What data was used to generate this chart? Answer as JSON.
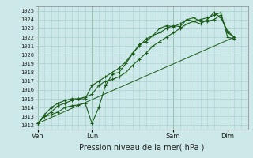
{
  "background_color": "#cce8e8",
  "grid_color": "#aacfcf",
  "line_color": "#1a5c1a",
  "title": "Pression niveau de la mer( hPa )",
  "ylabel_values": [
    1012,
    1013,
    1014,
    1015,
    1016,
    1017,
    1018,
    1019,
    1020,
    1021,
    1022,
    1023,
    1024,
    1025
  ],
  "ylim": [
    1011.5,
    1025.5
  ],
  "day_labels": [
    "Ven",
    "Lun",
    "Sam",
    "Dim"
  ],
  "day_positions": [
    0,
    48,
    120,
    168
  ],
  "xlim": [
    -2,
    186
  ],
  "series1_x": [
    0,
    6,
    12,
    18,
    24,
    30,
    36,
    42,
    48,
    54,
    60,
    66,
    72,
    78,
    84,
    90,
    96,
    102,
    108,
    114,
    120,
    126,
    132,
    138,
    144,
    150,
    156,
    162,
    168,
    174
  ],
  "series1_y": [
    1012.2,
    1013.0,
    1013.2,
    1013.5,
    1014.0,
    1014.2,
    1014.3,
    1014.5,
    1012.2,
    1014.0,
    1016.5,
    1017.8,
    1018.0,
    1019.0,
    1020.1,
    1021.2,
    1021.5,
    1022.2,
    1022.5,
    1023.0,
    1023.3,
    1023.2,
    1024.0,
    1023.8,
    1023.5,
    1024.0,
    1024.8,
    1024.2,
    1022.7,
    1022.0
  ],
  "series2_x": [
    0,
    6,
    12,
    18,
    24,
    30,
    36,
    42,
    48,
    54,
    60,
    66,
    72,
    78,
    84,
    90,
    96,
    102,
    108,
    114,
    120,
    126,
    132,
    138,
    144,
    150,
    156,
    162,
    168,
    174
  ],
  "series2_y": [
    1012.2,
    1013.2,
    1014.0,
    1014.5,
    1014.8,
    1015.0,
    1015.0,
    1015.0,
    1016.5,
    1017.0,
    1017.5,
    1018.0,
    1018.5,
    1019.2,
    1020.2,
    1021.0,
    1021.8,
    1022.2,
    1023.0,
    1023.3,
    1023.2,
    1023.5,
    1024.0,
    1024.2,
    1023.8,
    1023.8,
    1024.0,
    1024.5,
    1022.5,
    1022.0
  ],
  "series3_x": [
    0,
    6,
    12,
    18,
    24,
    30,
    36,
    42,
    48,
    54,
    60,
    66,
    72,
    78,
    84,
    90,
    96,
    102,
    108,
    114,
    120,
    126,
    132,
    138,
    144,
    150,
    156,
    162,
    168,
    174
  ],
  "series3_y": [
    1012.2,
    1013.0,
    1013.5,
    1014.2,
    1014.5,
    1014.8,
    1015.0,
    1015.2,
    1015.5,
    1016.5,
    1017.0,
    1017.2,
    1017.5,
    1018.0,
    1018.8,
    1019.5,
    1020.2,
    1021.0,
    1021.5,
    1022.0,
    1022.5,
    1023.0,
    1023.5,
    1023.8,
    1024.0,
    1024.2,
    1024.5,
    1024.8,
    1022.0,
    1021.8
  ],
  "trend_x": [
    0,
    174
  ],
  "trend_y": [
    1012.2,
    1022.0
  ],
  "title_fontsize": 7,
  "tick_fontsize": 5,
  "xlabel_fontsize": 6
}
